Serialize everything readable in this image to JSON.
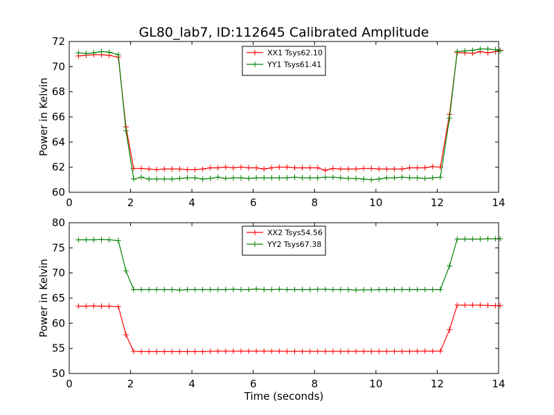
{
  "figure_title": "GL80_lab7, ID:112645 Calibrated Amplitude",
  "chart_data": [
    {
      "type": "line",
      "ylabel": "Power in Kelvin",
      "xlabel": "",
      "xlim": [
        0,
        14
      ],
      "ylim": [
        60,
        72
      ],
      "xticks": [
        0,
        2,
        4,
        6,
        8,
        10,
        12,
        14
      ],
      "yticks": [
        60,
        62,
        64,
        66,
        68,
        70,
        72
      ],
      "grid": false,
      "legend_position": "top-center",
      "series": [
        {
          "name": "XX1 Tsys62.10",
          "color": "#ff0000",
          "points": [
            [
              0.3,
              70.85
            ],
            [
              0.55,
              70.9
            ],
            [
              0.8,
              70.95
            ],
            [
              1.05,
              70.95
            ],
            [
              1.3,
              70.9
            ],
            [
              1.6,
              70.75
            ],
            [
              1.85,
              65.2
            ],
            [
              2.1,
              61.9
            ],
            [
              2.35,
              61.9
            ],
            [
              2.6,
              61.85
            ],
            [
              2.85,
              61.8
            ],
            [
              3.1,
              61.85
            ],
            [
              3.35,
              61.85
            ],
            [
              3.6,
              61.85
            ],
            [
              3.85,
              61.8
            ],
            [
              4.1,
              61.8
            ],
            [
              4.35,
              61.85
            ],
            [
              4.6,
              61.95
            ],
            [
              4.85,
              61.95
            ],
            [
              5.1,
              62.0
            ],
            [
              5.35,
              61.95
            ],
            [
              5.6,
              62.0
            ],
            [
              5.85,
              61.95
            ],
            [
              6.1,
              61.95
            ],
            [
              6.35,
              61.85
            ],
            [
              6.6,
              61.95
            ],
            [
              6.85,
              62.0
            ],
            [
              7.1,
              62.0
            ],
            [
              7.35,
              61.95
            ],
            [
              7.6,
              61.95
            ],
            [
              7.85,
              61.95
            ],
            [
              8.1,
              61.95
            ],
            [
              8.35,
              61.75
            ],
            [
              8.6,
              61.9
            ],
            [
              8.85,
              61.85
            ],
            [
              9.1,
              61.85
            ],
            [
              9.35,
              61.85
            ],
            [
              9.6,
              61.9
            ],
            [
              9.85,
              61.9
            ],
            [
              10.1,
              61.85
            ],
            [
              10.35,
              61.85
            ],
            [
              10.6,
              61.85
            ],
            [
              10.85,
              61.85
            ],
            [
              11.1,
              61.95
            ],
            [
              11.35,
              61.95
            ],
            [
              11.6,
              61.95
            ],
            [
              11.85,
              62.05
            ],
            [
              12.1,
              62.0
            ],
            [
              12.4,
              66.2
            ],
            [
              12.65,
              71.1
            ],
            [
              12.9,
              71.1
            ],
            [
              13.15,
              71.05
            ],
            [
              13.4,
              71.2
            ],
            [
              13.65,
              71.1
            ],
            [
              13.9,
              71.2
            ],
            [
              14.05,
              71.3
            ]
          ]
        },
        {
          "name": "YY1 Tsys61.41",
          "color": "#008000",
          "points": [
            [
              0.3,
              71.1
            ],
            [
              0.55,
              71.05
            ],
            [
              0.8,
              71.1
            ],
            [
              1.05,
              71.2
            ],
            [
              1.3,
              71.15
            ],
            [
              1.6,
              70.95
            ],
            [
              1.85,
              64.9
            ],
            [
              2.1,
              61.05
            ],
            [
              2.35,
              61.2
            ],
            [
              2.6,
              61.05
            ],
            [
              2.85,
              61.05
            ],
            [
              3.1,
              61.05
            ],
            [
              3.35,
              61.05
            ],
            [
              3.6,
              61.1
            ],
            [
              3.85,
              61.15
            ],
            [
              4.1,
              61.15
            ],
            [
              4.35,
              61.05
            ],
            [
              4.6,
              61.1
            ],
            [
              4.85,
              61.2
            ],
            [
              5.1,
              61.1
            ],
            [
              5.35,
              61.15
            ],
            [
              5.6,
              61.15
            ],
            [
              5.85,
              61.1
            ],
            [
              6.1,
              61.15
            ],
            [
              6.35,
              61.15
            ],
            [
              6.6,
              61.15
            ],
            [
              6.85,
              61.15
            ],
            [
              7.1,
              61.15
            ],
            [
              7.35,
              61.2
            ],
            [
              7.6,
              61.15
            ],
            [
              7.85,
              61.15
            ],
            [
              8.1,
              61.15
            ],
            [
              8.35,
              61.2
            ],
            [
              8.6,
              61.2
            ],
            [
              8.85,
              61.15
            ],
            [
              9.1,
              61.1
            ],
            [
              9.35,
              61.1
            ],
            [
              9.6,
              61.05
            ],
            [
              9.85,
              61.0
            ],
            [
              10.1,
              61.05
            ],
            [
              10.35,
              61.15
            ],
            [
              10.6,
              61.15
            ],
            [
              10.85,
              61.2
            ],
            [
              11.1,
              61.15
            ],
            [
              11.35,
              61.15
            ],
            [
              11.6,
              61.1
            ],
            [
              11.85,
              61.15
            ],
            [
              12.1,
              61.2
            ],
            [
              12.4,
              65.9
            ],
            [
              12.65,
              71.2
            ],
            [
              12.9,
              71.25
            ],
            [
              13.15,
              71.3
            ],
            [
              13.4,
              71.4
            ],
            [
              13.65,
              71.4
            ],
            [
              13.9,
              71.35
            ],
            [
              14.05,
              71.25
            ]
          ]
        }
      ]
    },
    {
      "type": "line",
      "ylabel": "Power in Kelvin",
      "xlabel": "Time (seconds)",
      "xlim": [
        0,
        14
      ],
      "ylim": [
        50,
        80
      ],
      "xticks": [
        0,
        2,
        4,
        6,
        8,
        10,
        12,
        14
      ],
      "yticks": [
        50,
        55,
        60,
        65,
        70,
        75,
        80
      ],
      "grid": false,
      "legend_position": "top-center",
      "series": [
        {
          "name": "XX2 Tsys54.56",
          "color": "#ff0000",
          "points": [
            [
              0.3,
              63.4
            ],
            [
              0.55,
              63.4
            ],
            [
              0.8,
              63.45
            ],
            [
              1.05,
              63.4
            ],
            [
              1.3,
              63.4
            ],
            [
              1.6,
              63.3
            ],
            [
              1.85,
              57.7
            ],
            [
              2.1,
              54.4
            ],
            [
              2.35,
              54.35
            ],
            [
              2.6,
              54.35
            ],
            [
              2.85,
              54.35
            ],
            [
              3.1,
              54.35
            ],
            [
              3.35,
              54.35
            ],
            [
              3.6,
              54.35
            ],
            [
              3.85,
              54.35
            ],
            [
              4.1,
              54.35
            ],
            [
              4.35,
              54.35
            ],
            [
              4.6,
              54.4
            ],
            [
              4.85,
              54.45
            ],
            [
              5.1,
              54.45
            ],
            [
              5.35,
              54.45
            ],
            [
              5.6,
              54.45
            ],
            [
              5.85,
              54.45
            ],
            [
              6.1,
              54.45
            ],
            [
              6.35,
              54.45
            ],
            [
              6.6,
              54.45
            ],
            [
              6.85,
              54.45
            ],
            [
              7.1,
              54.4
            ],
            [
              7.35,
              54.4
            ],
            [
              7.6,
              54.4
            ],
            [
              7.85,
              54.4
            ],
            [
              8.1,
              54.4
            ],
            [
              8.35,
              54.4
            ],
            [
              8.6,
              54.4
            ],
            [
              8.85,
              54.4
            ],
            [
              9.1,
              54.4
            ],
            [
              9.35,
              54.4
            ],
            [
              9.6,
              54.4
            ],
            [
              9.85,
              54.4
            ],
            [
              10.1,
              54.4
            ],
            [
              10.35,
              54.4
            ],
            [
              10.6,
              54.4
            ],
            [
              10.85,
              54.4
            ],
            [
              11.1,
              54.4
            ],
            [
              11.35,
              54.45
            ],
            [
              11.6,
              54.45
            ],
            [
              11.85,
              54.45
            ],
            [
              12.1,
              54.45
            ],
            [
              12.4,
              58.7
            ],
            [
              12.65,
              63.6
            ],
            [
              12.9,
              63.6
            ],
            [
              13.15,
              63.6
            ],
            [
              13.4,
              63.6
            ],
            [
              13.65,
              63.55
            ],
            [
              13.9,
              63.5
            ],
            [
              14.05,
              63.5
            ]
          ]
        },
        {
          "name": "YY2 Tsys67.38",
          "color": "#008000",
          "points": [
            [
              0.3,
              76.6
            ],
            [
              0.55,
              76.6
            ],
            [
              0.8,
              76.6
            ],
            [
              1.05,
              76.65
            ],
            [
              1.3,
              76.6
            ],
            [
              1.6,
              76.45
            ],
            [
              1.85,
              70.4
            ],
            [
              2.1,
              66.7
            ],
            [
              2.35,
              66.7
            ],
            [
              2.6,
              66.7
            ],
            [
              2.85,
              66.7
            ],
            [
              3.1,
              66.7
            ],
            [
              3.35,
              66.7
            ],
            [
              3.6,
              66.6
            ],
            [
              3.85,
              66.7
            ],
            [
              4.1,
              66.7
            ],
            [
              4.35,
              66.7
            ],
            [
              4.6,
              66.7
            ],
            [
              4.85,
              66.7
            ],
            [
              5.1,
              66.7
            ],
            [
              5.35,
              66.75
            ],
            [
              5.6,
              66.7
            ],
            [
              5.85,
              66.7
            ],
            [
              6.1,
              66.8
            ],
            [
              6.35,
              66.7
            ],
            [
              6.6,
              66.7
            ],
            [
              6.85,
              66.75
            ],
            [
              7.1,
              66.7
            ],
            [
              7.35,
              66.7
            ],
            [
              7.6,
              66.7
            ],
            [
              7.85,
              66.7
            ],
            [
              8.1,
              66.75
            ],
            [
              8.35,
              66.75
            ],
            [
              8.6,
              66.7
            ],
            [
              8.85,
              66.7
            ],
            [
              9.1,
              66.7
            ],
            [
              9.35,
              66.6
            ],
            [
              9.6,
              66.65
            ],
            [
              9.85,
              66.65
            ],
            [
              10.1,
              66.7
            ],
            [
              10.35,
              66.7
            ],
            [
              10.6,
              66.7
            ],
            [
              10.85,
              66.7
            ],
            [
              11.1,
              66.7
            ],
            [
              11.35,
              66.7
            ],
            [
              11.6,
              66.7
            ],
            [
              11.85,
              66.7
            ],
            [
              12.1,
              66.7
            ],
            [
              12.4,
              71.4
            ],
            [
              12.65,
              76.75
            ],
            [
              12.9,
              76.75
            ],
            [
              13.15,
              76.75
            ],
            [
              13.4,
              76.75
            ],
            [
              13.65,
              76.8
            ],
            [
              13.9,
              76.8
            ],
            [
              14.05,
              76.8
            ]
          ]
        }
      ]
    }
  ]
}
